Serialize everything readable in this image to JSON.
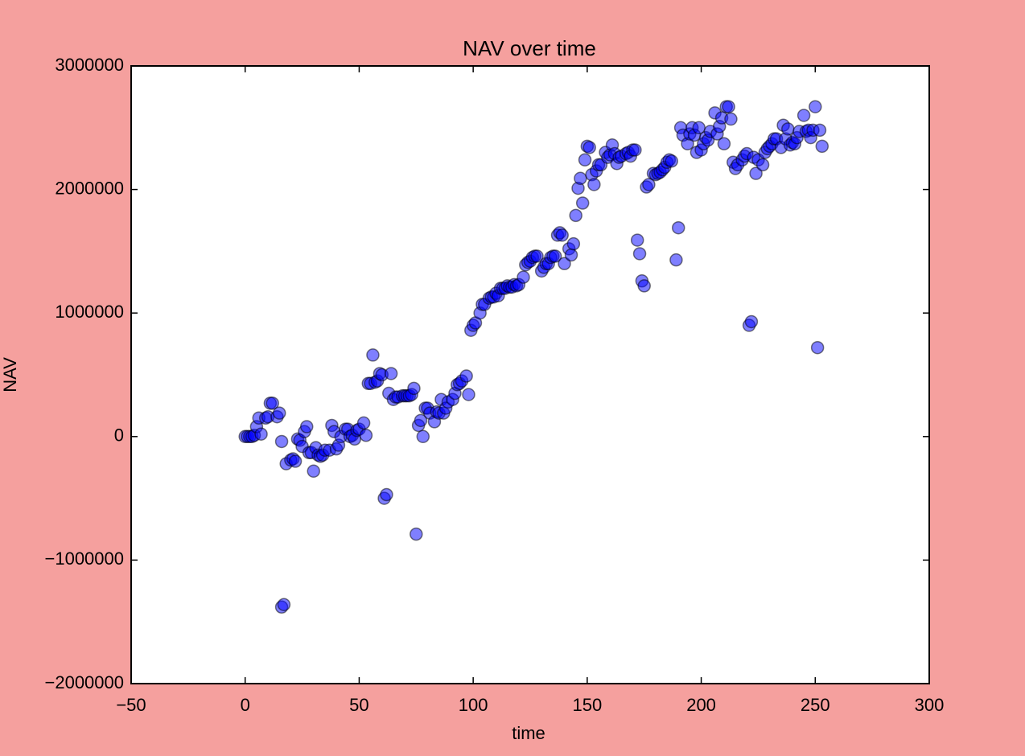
{
  "chart_data": {
    "type": "scatter",
    "title": "NAV over time",
    "x_label": "time",
    "y_label": "NAV",
    "color": "#0000ff",
    "edge_color": "#000000",
    "alpha": 0.5,
    "xlim": [
      -50,
      300
    ],
    "xticks": [
      {
        "value": -50,
        "label": "−50"
      },
      0,
      50,
      100,
      150,
      200,
      250,
      300
    ],
    "ylim": [
      -2000000,
      3000000
    ],
    "yticks": [
      {
        "value": -2000000,
        "label": "−2000000"
      },
      {
        "value": -1000000,
        "label": "−1000000"
      },
      0,
      1000000,
      2000000,
      3000000
    ],
    "grid": false,
    "x": [
      0,
      1,
      2,
      3,
      4,
      5,
      6,
      7,
      9,
      10,
      11,
      12,
      14,
      15,
      16,
      16,
      17,
      18,
      20,
      21,
      22,
      23,
      24,
      25,
      26,
      27,
      28,
      29,
      30,
      31,
      32,
      33,
      34,
      35,
      37,
      38,
      39,
      40,
      41,
      42,
      44,
      45,
      46,
      47,
      48,
      49,
      50,
      52,
      53,
      54,
      55,
      56,
      57,
      58,
      59,
      60,
      61,
      62,
      63,
      64,
      65,
      66,
      67,
      69,
      70,
      71,
      72,
      73,
      74,
      75,
      76,
      77,
      78,
      79,
      80,
      81,
      83,
      84,
      85,
      86,
      87,
      88,
      89,
      91,
      92,
      93,
      94,
      95,
      97,
      98,
      99,
      100,
      101,
      103,
      104,
      105,
      107,
      108,
      109,
      110,
      111,
      112,
      113,
      114,
      115,
      116,
      117,
      118,
      119,
      120,
      122,
      123,
      124,
      125,
      126,
      127,
      128,
      130,
      131,
      132,
      133,
      134,
      135,
      136,
      137,
      138,
      139,
      140,
      142,
      143,
      144,
      145,
      146,
      147,
      148,
      149,
      150,
      151,
      152,
      153,
      154,
      155,
      156,
      158,
      159,
      160,
      161,
      162,
      163,
      164,
      165,
      167,
      168,
      169,
      170,
      171,
      172,
      173,
      174,
      175,
      176,
      177,
      179,
      180,
      181,
      182,
      183,
      184,
      185,
      186,
      187,
      189,
      190,
      191,
      192,
      194,
      195,
      196,
      197,
      198,
      199,
      200,
      201,
      202,
      203,
      204,
      206,
      207,
      208,
      209,
      210,
      211,
      212,
      213,
      214,
      215,
      216,
      218,
      219,
      220,
      221,
      222,
      223,
      224,
      225,
      227,
      228,
      229,
      230,
      231,
      232,
      233,
      235,
      236,
      237,
      238,
      239,
      240,
      241,
      242,
      243,
      245,
      246,
      247,
      248,
      249,
      250,
      251,
      252,
      253
    ],
    "y": [
      0,
      0,
      0,
      0,
      10000,
      80000,
      150000,
      20000,
      150000,
      160000,
      270000,
      270000,
      160000,
      190000,
      -40000,
      -1380000,
      -1360000,
      -220000,
      -190000,
      -180000,
      -200000,
      -20000,
      -30000,
      -80000,
      40000,
      80000,
      -130000,
      -130000,
      -280000,
      -90000,
      -150000,
      -160000,
      -150000,
      -110000,
      -110000,
      90000,
      40000,
      -100000,
      -70000,
      0,
      60000,
      60000,
      0,
      10000,
      -20000,
      50000,
      60000,
      110000,
      10000,
      430000,
      430000,
      660000,
      440000,
      450000,
      510000,
      500000,
      -500000,
      -470000,
      350000,
      510000,
      300000,
      320000,
      320000,
      330000,
      330000,
      330000,
      330000,
      340000,
      390000,
      -790000,
      90000,
      130000,
      0,
      230000,
      230000,
      190000,
      120000,
      200000,
      190000,
      300000,
      190000,
      230000,
      280000,
      300000,
      350000,
      420000,
      430000,
      450000,
      490000,
      340000,
      860000,
      900000,
      920000,
      1000000,
      1070000,
      1070000,
      1120000,
      1130000,
      1130000,
      1160000,
      1140000,
      1200000,
      1200000,
      1200000,
      1220000,
      1210000,
      1210000,
      1230000,
      1220000,
      1230000,
      1290000,
      1390000,
      1410000,
      1420000,
      1450000,
      1460000,
      1460000,
      1340000,
      1370000,
      1400000,
      1400000,
      1450000,
      1460000,
      1460000,
      1630000,
      1650000,
      1630000,
      1400000,
      1520000,
      1470000,
      1560000,
      1790000,
      2010000,
      2090000,
      1890000,
      2240000,
      2350000,
      2340000,
      2120000,
      2040000,
      2150000,
      2200000,
      2200000,
      2300000,
      2260000,
      2280000,
      2360000,
      2290000,
      2210000,
      2260000,
      2270000,
      2290000,
      2300000,
      2270000,
      2320000,
      2320000,
      1590000,
      1480000,
      1260000,
      1220000,
      2020000,
      2040000,
      2130000,
      2120000,
      2130000,
      2140000,
      2160000,
      2180000,
      2220000,
      2240000,
      2230000,
      1430000,
      1690000,
      2500000,
      2440000,
      2370000,
      2450000,
      2500000,
      2440000,
      2300000,
      2500000,
      2320000,
      2370000,
      2420000,
      2400000,
      2470000,
      2620000,
      2450000,
      2510000,
      2580000,
      2370000,
      2670000,
      2670000,
      2570000,
      2220000,
      2170000,
      2200000,
      2240000,
      2270000,
      2290000,
      900000,
      930000,
      2260000,
      2130000,
      2240000,
      2200000,
      2300000,
      2330000,
      2350000,
      2370000,
      2410000,
      2410000,
      2340000,
      2520000,
      2410000,
      2490000,
      2360000,
      2380000,
      2370000,
      2420000,
      2470000,
      2600000,
      2470000,
      2480000,
      2420000,
      2480000,
      2670000,
      720000,
      2480000,
      2350000
    ]
  }
}
